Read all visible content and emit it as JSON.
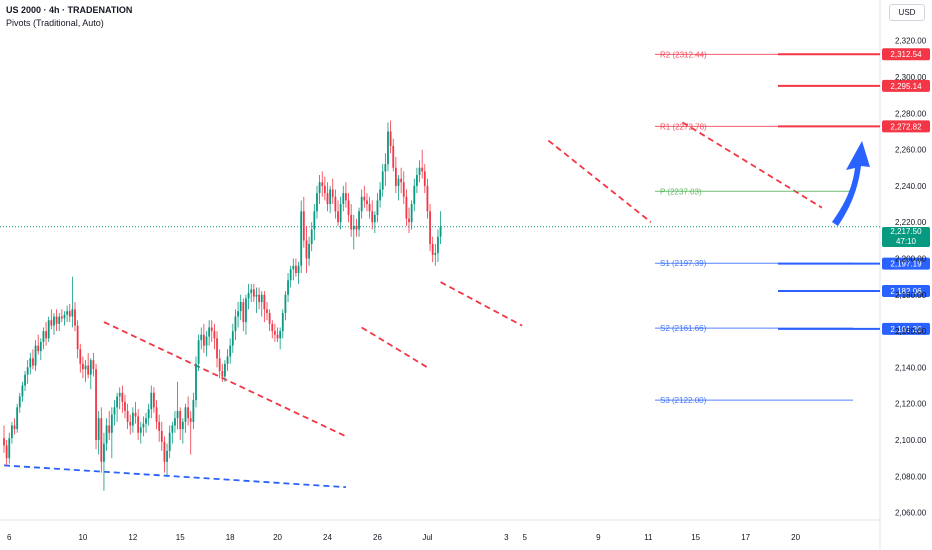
{
  "header": {
    "title": "US 2000 · 4h · TRADENATION",
    "indicator": "Pivots (Traditional, Auto)"
  },
  "currency_button": "USD",
  "current_price": {
    "value": "2,217.50",
    "countdown": "47:10",
    "color": "#089981"
  },
  "colors": {
    "up": "#089981",
    "down": "#f23645",
    "resistance": "#f23645",
    "support": "#2962ff",
    "pivot": "#4caf50",
    "arrow": "#2962ff",
    "wedge_red": "#f23645",
    "wedge_blue": "#2962ff"
  },
  "pivots": [
    {
      "name": "R2",
      "label": "R2 (2312.44)",
      "value": 2312.44,
      "kind": "resistance"
    },
    {
      "name": "R1",
      "label": "R1 (2272.78)",
      "value": 2272.78,
      "kind": "resistance"
    },
    {
      "name": "P",
      "label": "P (2237.03)",
      "value": 2237.03,
      "kind": "pivot"
    },
    {
      "name": "S1",
      "label": "S1 (2197.39)",
      "value": 2197.39,
      "kind": "support"
    },
    {
      "name": "S2",
      "label": "S2 (2161.66)",
      "value": 2161.66,
      "kind": "support"
    },
    {
      "name": "S3",
      "label": "S3 (2122.00)",
      "value": 2122.0,
      "kind": "support"
    }
  ],
  "levels": [
    {
      "label": "2,312.54",
      "value": 2312.54,
      "kind": "resistance"
    },
    {
      "label": "2,295.14",
      "value": 2295.14,
      "kind": "resistance"
    },
    {
      "label": "2,272.82",
      "value": 2272.82,
      "kind": "resistance"
    },
    {
      "label": "2,197.19",
      "value": 2197.19,
      "kind": "support"
    },
    {
      "label": "2,182.06",
      "value": 2182.06,
      "kind": "support"
    },
    {
      "label": "2,161.26",
      "value": 2161.26,
      "kind": "support"
    }
  ],
  "chart_data": {
    "type": "candlestick",
    "title": "US 2000 · 4h · TRADENATION",
    "ylim": [
      2050,
      2330
    ],
    "y_ticks": [
      {
        "value": 2320,
        "label": "2,320.00"
      },
      {
        "value": 2300,
        "label": "2,300.00"
      },
      {
        "value": 2280,
        "label": "2,280.00"
      },
      {
        "value": 2260,
        "label": "2,260.00"
      },
      {
        "value": 2240,
        "label": "2,240.00"
      },
      {
        "value": 2220,
        "label": "2,220.00"
      },
      {
        "value": 2200,
        "label": "2,200.00"
      },
      {
        "value": 2180,
        "label": "2,180.00"
      },
      {
        "value": 2160,
        "label": "2,160.00"
      },
      {
        "value": 2140,
        "label": "2,140.00"
      },
      {
        "value": 2120,
        "label": "2,120.00"
      },
      {
        "value": 2100,
        "label": "2,100.00"
      },
      {
        "value": 2080,
        "label": "2,080.00"
      },
      {
        "value": 2060,
        "label": "2,060.00"
      }
    ],
    "x_ticks": [
      {
        "index": 2,
        "label": "6"
      },
      {
        "index": 30,
        "label": "10"
      },
      {
        "index": 49,
        "label": "12"
      },
      {
        "index": 67,
        "label": "15"
      },
      {
        "index": 86,
        "label": "18"
      },
      {
        "index": 104,
        "label": "20"
      },
      {
        "index": 123,
        "label": "24"
      },
      {
        "index": 142,
        "label": "26"
      },
      {
        "index": 161,
        "label": "Jul"
      },
      {
        "index": 191,
        "label": "3"
      },
      {
        "index": 198,
        "label": "5"
      },
      {
        "index": 226,
        "label": "9"
      },
      {
        "index": 245,
        "label": "11"
      },
      {
        "index": 263,
        "label": "15"
      },
      {
        "index": 282,
        "label": "17"
      },
      {
        "index": 301,
        "label": "20"
      }
    ],
    "candles": [
      [
        2101,
        2108,
        2093,
        2097
      ],
      [
        2097,
        2100,
        2086,
        2090
      ],
      [
        2090,
        2104,
        2087,
        2101
      ],
      [
        2101,
        2110,
        2098,
        2108
      ],
      [
        2108,
        2112,
        2103,
        2106
      ],
      [
        2106,
        2120,
        2104,
        2118
      ],
      [
        2118,
        2126,
        2115,
        2124
      ],
      [
        2124,
        2132,
        2121,
        2130
      ],
      [
        2130,
        2138,
        2127,
        2136
      ],
      [
        2136,
        2144,
        2131,
        2140
      ],
      [
        2140,
        2148,
        2136,
        2145
      ],
      [
        2145,
        2150,
        2139,
        2141
      ],
      [
        2141,
        2155,
        2138,
        2152
      ],
      [
        2152,
        2158,
        2147,
        2149
      ],
      [
        2149,
        2156,
        2144,
        2154
      ],
      [
        2154,
        2162,
        2150,
        2160
      ],
      [
        2160,
        2165,
        2152,
        2156
      ],
      [
        2156,
        2168,
        2154,
        2166
      ],
      [
        2166,
        2172,
        2161,
        2163
      ],
      [
        2163,
        2170,
        2158,
        2168
      ],
      [
        2168,
        2172,
        2160,
        2164
      ],
      [
        2164,
        2170,
        2160,
        2168
      ],
      [
        2168,
        2172,
        2165,
        2167
      ],
      [
        2167,
        2171,
        2163,
        2169
      ],
      [
        2169,
        2174,
        2165,
        2171
      ],
      [
        2171,
        2175,
        2165,
        2168
      ],
      [
        2168,
        2190,
        2162,
        2172
      ],
      [
        2172,
        2176,
        2160,
        2163
      ],
      [
        2163,
        2166,
        2145,
        2150
      ],
      [
        2150,
        2153,
        2137,
        2142
      ],
      [
        2142,
        2146,
        2134,
        2139
      ],
      [
        2139,
        2144,
        2132,
        2141
      ],
      [
        2141,
        2148,
        2134,
        2136
      ],
      [
        2136,
        2145,
        2128,
        2144
      ],
      [
        2144,
        2148,
        2135,
        2139
      ],
      [
        2139,
        2142,
        2095,
        2100
      ],
      [
        2100,
        2116,
        2092,
        2112
      ],
      [
        2112,
        2118,
        2082,
        2088
      ],
      [
        2088,
        2104,
        2072,
        2098
      ],
      [
        2098,
        2112,
        2094,
        2108
      ],
      [
        2108,
        2116,
        2100,
        2104
      ],
      [
        2104,
        2118,
        2090,
        2114
      ],
      [
        2114,
        2122,
        2108,
        2118
      ],
      [
        2118,
        2126,
        2110,
        2124
      ],
      [
        2124,
        2129,
        2117,
        2126
      ],
      [
        2126,
        2130,
        2115,
        2121
      ],
      [
        2121,
        2125,
        2112,
        2116
      ],
      [
        2116,
        2120,
        2106,
        2110
      ],
      [
        2110,
        2114,
        2103,
        2108
      ],
      [
        2108,
        2118,
        2104,
        2115
      ],
      [
        2115,
        2121,
        2109,
        2113
      ],
      [
        2113,
        2117,
        2100,
        2104
      ],
      [
        2104,
        2110,
        2098,
        2107
      ],
      [
        2107,
        2113,
        2102,
        2109
      ],
      [
        2109,
        2115,
        2104,
        2112
      ],
      [
        2112,
        2120,
        2108,
        2117
      ],
      [
        2117,
        2130,
        2112,
        2126
      ],
      [
        2126,
        2129,
        2115,
        2118
      ],
      [
        2118,
        2122,
        2106,
        2110
      ],
      [
        2110,
        2114,
        2099,
        2105
      ],
      [
        2105,
        2110,
        2094,
        2099
      ],
      [
        2099,
        2102,
        2082,
        2088
      ],
      [
        2088,
        2098,
        2080,
        2094
      ],
      [
        2094,
        2108,
        2090,
        2104
      ],
      [
        2104,
        2110,
        2098,
        2108
      ],
      [
        2108,
        2116,
        2104,
        2112
      ],
      [
        2112,
        2132,
        2106,
        2116
      ],
      [
        2116,
        2118,
        2100,
        2106
      ],
      [
        2106,
        2112,
        2098,
        2110
      ],
      [
        2110,
        2120,
        2104,
        2118
      ],
      [
        2118,
        2124,
        2108,
        2112
      ],
      [
        2112,
        2116,
        2092,
        2110
      ],
      [
        2110,
        2126,
        2106,
        2122
      ],
      [
        2122,
        2146,
        2118,
        2142
      ],
      [
        2142,
        2158,
        2138,
        2155
      ],
      [
        2155,
        2162,
        2150,
        2158
      ],
      [
        2158,
        2164,
        2148,
        2152
      ],
      [
        2152,
        2160,
        2146,
        2157
      ],
      [
        2157,
        2166,
        2152,
        2162
      ],
      [
        2162,
        2166,
        2154,
        2160
      ],
      [
        2160,
        2164,
        2150,
        2156
      ],
      [
        2156,
        2160,
        2140,
        2145
      ],
      [
        2145,
        2150,
        2134,
        2138
      ],
      [
        2138,
        2142,
        2132,
        2135
      ],
      [
        2135,
        2144,
        2132,
        2142
      ],
      [
        2142,
        2150,
        2138,
        2146
      ],
      [
        2146,
        2156,
        2142,
        2152
      ],
      [
        2152,
        2164,
        2148,
        2160
      ],
      [
        2160,
        2172,
        2155,
        2168
      ],
      [
        2168,
        2176,
        2162,
        2171
      ],
      [
        2171,
        2180,
        2166,
        2176
      ],
      [
        2176,
        2178,
        2160,
        2165
      ],
      [
        2165,
        2180,
        2158,
        2178
      ],
      [
        2178,
        2186,
        2172,
        2181
      ],
      [
        2181,
        2186,
        2176,
        2183
      ],
      [
        2183,
        2186,
        2176,
        2179
      ],
      [
        2179,
        2184,
        2170,
        2180
      ],
      [
        2180,
        2184,
        2172,
        2176
      ],
      [
        2176,
        2182,
        2168,
        2180
      ],
      [
        2180,
        2182,
        2165,
        2172
      ],
      [
        2172,
        2176,
        2166,
        2170
      ],
      [
        2170,
        2172,
        2160,
        2164
      ],
      [
        2164,
        2166,
        2156,
        2160
      ],
      [
        2160,
        2164,
        2154,
        2158
      ],
      [
        2158,
        2162,
        2154,
        2156
      ],
      [
        2156,
        2162,
        2150,
        2160
      ],
      [
        2160,
        2172,
        2156,
        2170
      ],
      [
        2170,
        2182,
        2166,
        2180
      ],
      [
        2180,
        2192,
        2176,
        2188
      ],
      [
        2188,
        2196,
        2184,
        2194
      ],
      [
        2194,
        2200,
        2188,
        2196
      ],
      [
        2196,
        2200,
        2190,
        2192
      ],
      [
        2192,
        2198,
        2186,
        2196
      ],
      [
        2196,
        2232,
        2192,
        2226
      ],
      [
        2226,
        2234,
        2206,
        2210
      ],
      [
        2210,
        2218,
        2192,
        2200
      ],
      [
        2200,
        2212,
        2196,
        2208
      ],
      [
        2208,
        2220,
        2204,
        2216
      ],
      [
        2216,
        2230,
        2210,
        2226
      ],
      [
        2226,
        2240,
        2222,
        2236
      ],
      [
        2236,
        2246,
        2230,
        2242
      ],
      [
        2242,
        2248,
        2234,
        2240
      ],
      [
        2240,
        2245,
        2232,
        2236
      ],
      [
        2236,
        2242,
        2226,
        2230
      ],
      [
        2230,
        2240,
        2225,
        2238
      ],
      [
        2238,
        2244,
        2230,
        2234
      ],
      [
        2234,
        2238,
        2222,
        2226
      ],
      [
        2226,
        2232,
        2218,
        2220
      ],
      [
        2220,
        2234,
        2216,
        2230
      ],
      [
        2230,
        2240,
        2226,
        2236
      ],
      [
        2236,
        2242,
        2228,
        2232
      ],
      [
        2232,
        2236,
        2220,
        2224
      ],
      [
        2224,
        2230,
        2212,
        2216
      ],
      [
        2216,
        2224,
        2205,
        2218
      ],
      [
        2218,
        2222,
        2212,
        2216
      ],
      [
        2216,
        2228,
        2212,
        2226
      ],
      [
        2226,
        2238,
        2222,
        2234
      ],
      [
        2234,
        2240,
        2228,
        2232
      ],
      [
        2232,
        2236,
        2226,
        2230
      ],
      [
        2230,
        2234,
        2222,
        2226
      ],
      [
        2226,
        2232,
        2216,
        2220
      ],
      [
        2220,
        2226,
        2214,
        2224
      ],
      [
        2224,
        2236,
        2220,
        2232
      ],
      [
        2232,
        2242,
        2228,
        2238
      ],
      [
        2238,
        2252,
        2234,
        2248
      ],
      [
        2248,
        2258,
        2240,
        2252
      ],
      [
        2252,
        2275,
        2248,
        2270
      ],
      [
        2270,
        2276,
        2258,
        2262
      ],
      [
        2262,
        2266,
        2248,
        2250
      ],
      [
        2250,
        2256,
        2236,
        2240
      ],
      [
        2240,
        2246,
        2232,
        2244
      ],
      [
        2244,
        2250,
        2236,
        2242
      ],
      [
        2242,
        2248,
        2230,
        2234
      ],
      [
        2234,
        2238,
        2218,
        2222
      ],
      [
        2222,
        2228,
        2214,
        2220
      ],
      [
        2220,
        2232,
        2216,
        2230
      ],
      [
        2230,
        2244,
        2226,
        2240
      ],
      [
        2240,
        2250,
        2236,
        2246
      ],
      [
        2246,
        2254,
        2242,
        2250
      ],
      [
        2250,
        2260,
        2244,
        2248
      ],
      [
        2248,
        2252,
        2236,
        2240
      ],
      [
        2240,
        2244,
        2222,
        2226
      ],
      [
        2226,
        2230,
        2204,
        2208
      ],
      [
        2208,
        2212,
        2198,
        2202
      ],
      [
        2202,
        2208,
        2196,
        2203
      ],
      [
        2203,
        2216,
        2198,
        2212
      ],
      [
        2212,
        2226,
        2208,
        2217.5
      ]
    ]
  }
}
